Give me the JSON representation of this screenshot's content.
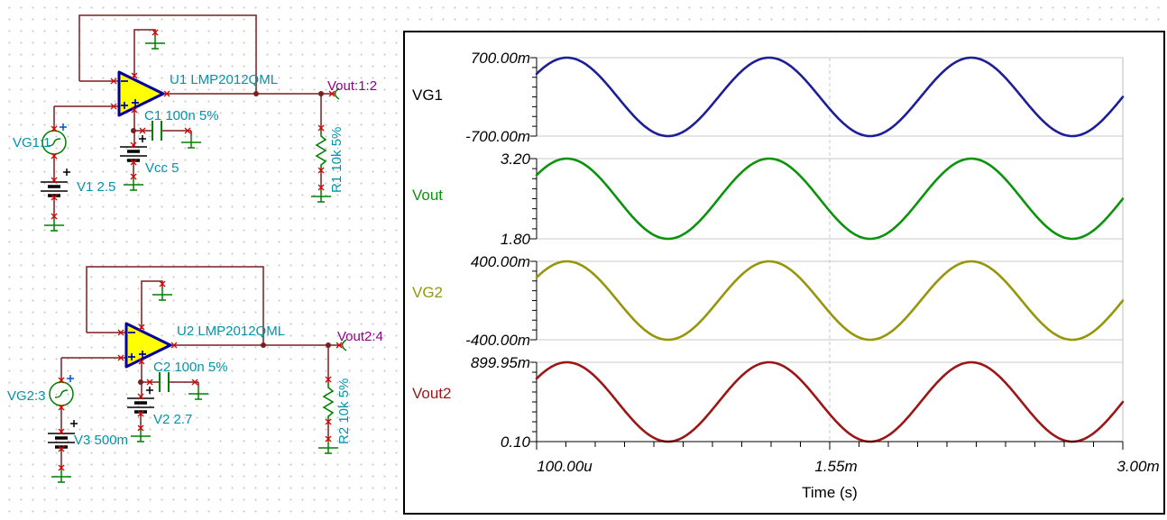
{
  "schematic": {
    "circuit1": {
      "opamp": "U1 LMP2012QML",
      "cap": "C1 100n 5%",
      "supply": "Vcc 5",
      "bias": "V1 2.5",
      "generator": "VG1:1",
      "output_net": "Vout:1:2",
      "resistor": "R1 10k 5%"
    },
    "circuit2": {
      "opamp": "U2 LMP2012QML",
      "cap": "C2 100n 5%",
      "supply": "V2 2.7",
      "bias": "V3 500m",
      "generator": "VG2:3",
      "output_net": "Vout2:4",
      "resistor": "R2 10k 5%"
    },
    "colors": {
      "wire": "#7A1F1F",
      "component_green": "#008000",
      "label_teal": "#0094A8",
      "net_label_purple": "#91008C",
      "opamp_fill": "#FFFF00",
      "opamp_border": "#0000A0",
      "pin_marker_red": "#E00000",
      "battery_black": "#000000"
    }
  },
  "chart_data": {
    "type": "line",
    "title": "",
    "xlabel": "Time (s)",
    "x_ticks": [
      "100.00u",
      "1.55m",
      "3.00m"
    ],
    "x_range_s": [
      0.0001,
      0.003
    ],
    "frequency_hz": 1000,
    "period_s": 0.001,
    "waveform": "sine",
    "grid": "top-bottom gridlines per subplot, dashed vertical at mid",
    "legend_position": "left trace-name labels",
    "plots": [
      {
        "name": "VG1",
        "name_color": "#000000",
        "color": "#1E1E96",
        "offset_v": 0.0,
        "amplitude_v": 0.7,
        "y_top": 0.7,
        "y_bottom": -0.7,
        "y_top_label": "700.00m",
        "y_bottom_label": "-700.00m"
      },
      {
        "name": "Vout",
        "name_color": "#0B930B",
        "color": "#0B930B",
        "offset_v": 2.5,
        "amplitude_v": 0.7,
        "y_top": 3.2,
        "y_bottom": 1.8,
        "y_top_label": "3.20",
        "y_bottom_label": "1.80"
      },
      {
        "name": "VG2",
        "name_color": "#96960B",
        "color": "#96960B",
        "offset_v": 0.0,
        "amplitude_v": 0.4,
        "y_top": 0.4,
        "y_bottom": -0.4,
        "y_top_label": "400.00m",
        "y_bottom_label": "-400.00m"
      },
      {
        "name": "Vout2",
        "name_color": "#9B1717",
        "color": "#9B1717",
        "offset_v": 0.5,
        "amplitude_v": 0.39995,
        "y_top": 0.89995,
        "y_bottom": 0.1,
        "y_top_label": "899.95m",
        "y_bottom_label": "0.10"
      }
    ]
  }
}
